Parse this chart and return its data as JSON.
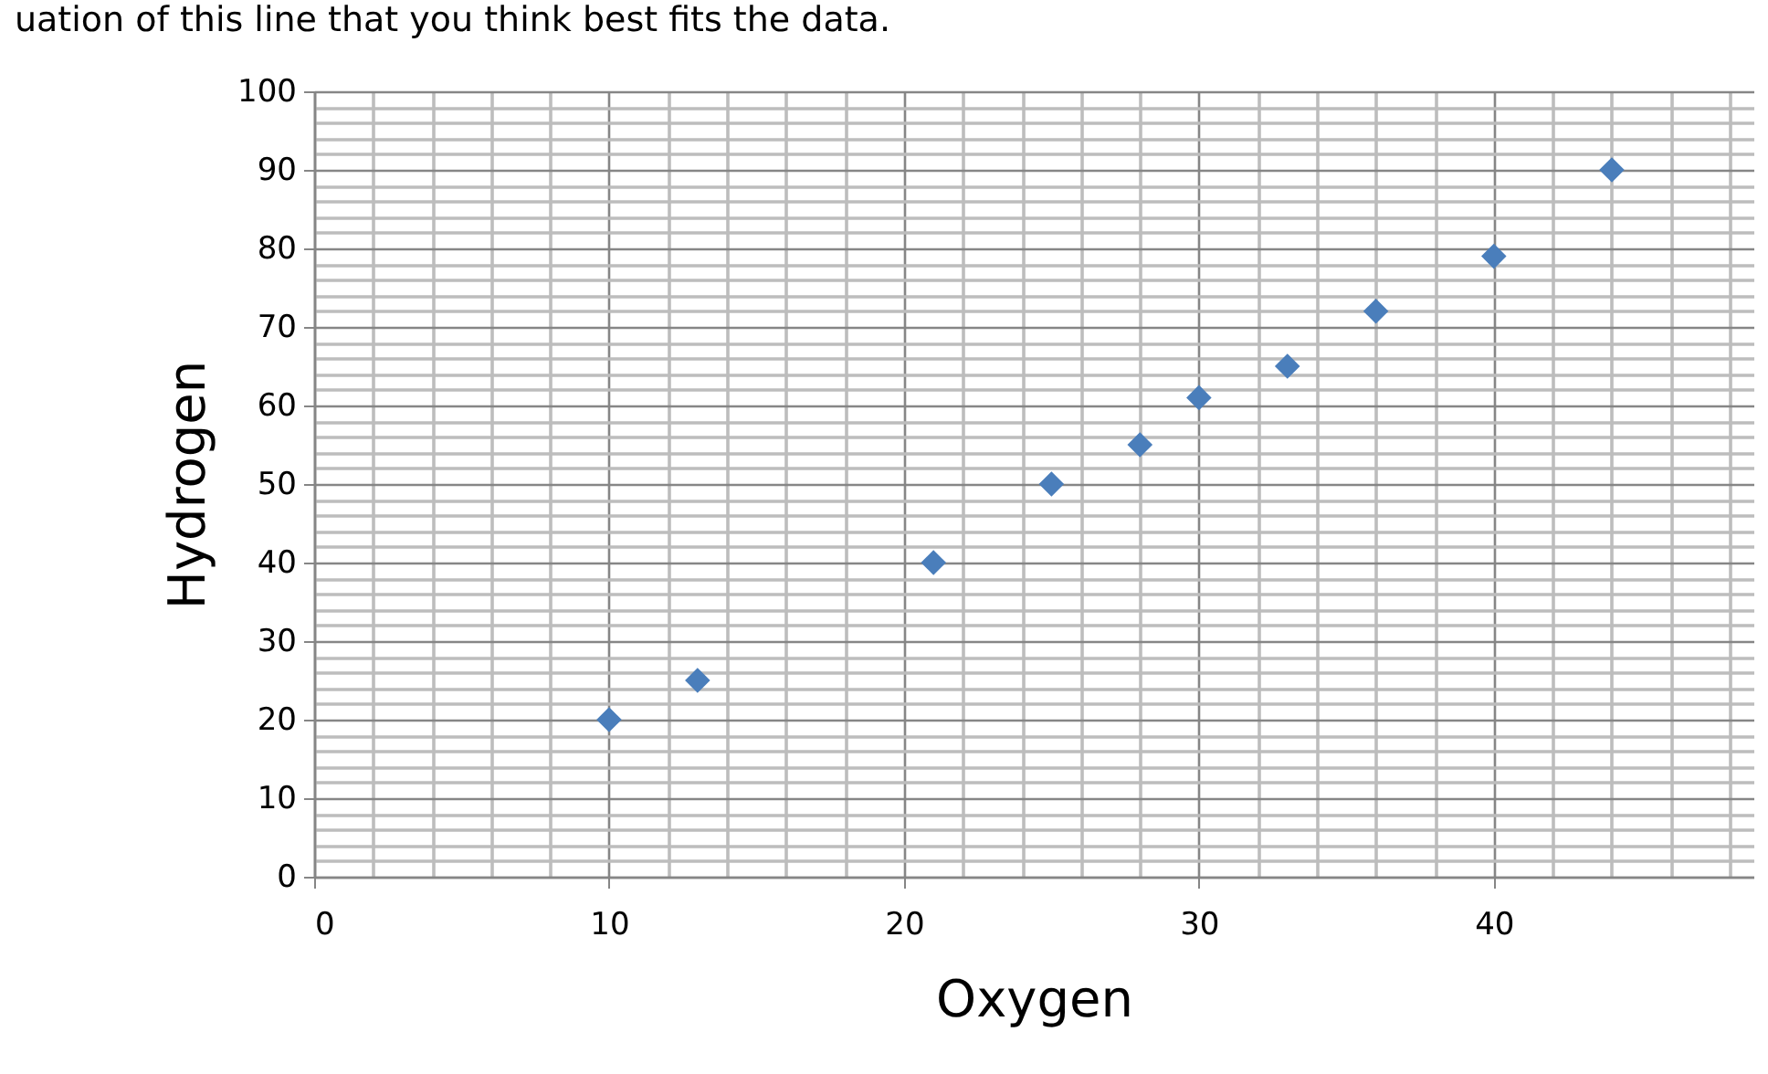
{
  "chart_data": {
    "type": "scatter",
    "annotations": [
      "uation of this line that you think best fits the data."
    ],
    "xlabel": "Oxygen",
    "ylabel": "Hydrogen",
    "x": [
      10,
      13,
      21,
      25,
      28,
      30,
      33,
      36,
      40,
      44
    ],
    "series": [
      {
        "color": "#4a7ebb",
        "values": [
          20,
          25,
          40,
          50,
          55,
          61,
          65,
          72,
          79,
          90
        ]
      }
    ],
    "xlim": [
      0,
      48.8
    ],
    "xticks": [
      0,
      {
        "value": 2,
        "label": null
      },
      {
        "value": 4,
        "label": null
      },
      {
        "value": 6,
        "label": null
      },
      {
        "value": 8,
        "label": null
      },
      10,
      {
        "value": 12,
        "label": null
      },
      {
        "value": 14,
        "label": null
      },
      {
        "value": 16,
        "label": null
      },
      {
        "value": 18,
        "label": null
      },
      20,
      {
        "value": 22,
        "label": null
      },
      {
        "value": 24,
        "label": null
      },
      {
        "value": 26,
        "label": null
      },
      {
        "value": 28,
        "label": null
      },
      30,
      {
        "value": 32,
        "label": null
      },
      {
        "value": 34,
        "label": null
      },
      {
        "value": 36,
        "label": null
      },
      {
        "value": 38,
        "label": null
      },
      40,
      {
        "value": 42,
        "label": null
      },
      {
        "value": 44,
        "label": null
      },
      {
        "value": 46,
        "label": null
      },
      {
        "value": 48,
        "label": null
      }
    ],
    "ylim": [
      0,
      100
    ],
    "yticks": [
      0,
      {
        "value": 2,
        "label": null
      },
      {
        "value": 4,
        "label": null
      },
      {
        "value": 6,
        "label": null
      },
      {
        "value": 8,
        "label": null
      },
      10,
      {
        "value": 12,
        "label": null
      },
      {
        "value": 14,
        "label": null
      },
      {
        "value": 16,
        "label": null
      },
      {
        "value": 18,
        "label": null
      },
      20,
      {
        "value": 22,
        "label": null
      },
      {
        "value": 24,
        "label": null
      },
      {
        "value": 26,
        "label": null
      },
      {
        "value": 28,
        "label": null
      },
      30,
      {
        "value": 32,
        "label": null
      },
      {
        "value": 34,
        "label": null
      },
      {
        "value": 36,
        "label": null
      },
      {
        "value": 38,
        "label": null
      },
      40,
      {
        "value": 42,
        "label": null
      },
      {
        "value": 44,
        "label": null
      },
      {
        "value": 46,
        "label": null
      },
      {
        "value": 48,
        "label": null
      },
      50,
      {
        "value": 52,
        "label": null
      },
      {
        "value": 54,
        "label": null
      },
      {
        "value": 56,
        "label": null
      },
      {
        "value": 58,
        "label": null
      },
      60,
      {
        "value": 62,
        "label": null
      },
      {
        "value": 64,
        "label": null
      },
      {
        "value": 66,
        "label": null
      },
      {
        "value": 68,
        "label": null
      },
      70,
      {
        "value": 72,
        "label": null
      },
      {
        "value": 74,
        "label": null
      },
      {
        "value": 76,
        "label": null
      },
      {
        "value": 78,
        "label": null
      },
      80,
      {
        "value": 82,
        "label": null
      },
      {
        "value": 84,
        "label": null
      },
      {
        "value": 86,
        "label": null
      },
      {
        "value": 88,
        "label": null
      },
      90,
      {
        "value": 92,
        "label": null
      },
      {
        "value": 94,
        "label": null
      },
      {
        "value": 96,
        "label": null
      },
      {
        "value": 98,
        "label": null
      },
      100
    ],
    "grid": true,
    "marker": "diamond"
  }
}
